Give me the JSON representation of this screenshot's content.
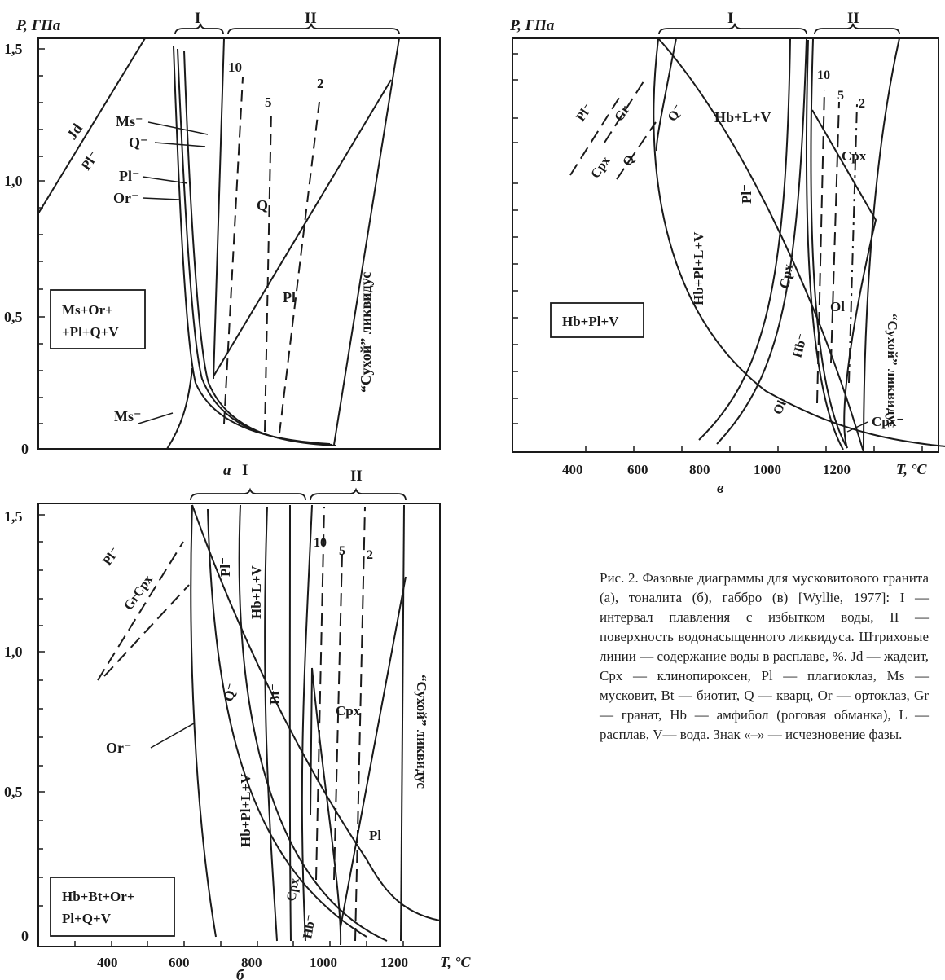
{
  "axis": {
    "p_label": "P, ГПа",
    "t_label": "T, °C",
    "p_ticks": [
      "1,5",
      "1,0",
      "0,5",
      "0"
    ],
    "t_ticks": [
      "400",
      "600",
      "800",
      "1000",
      "1200"
    ]
  },
  "brackets": {
    "one": "I",
    "two": "II"
  },
  "dry_liquidus": "“Сухой” ликвидус",
  "panels": {
    "a": {
      "letter": "а",
      "box": [
        "Ms+Or+",
        "+Pl+Q+V"
      ],
      "labels": {
        "jd": "Jd",
        "pl_left": "Pl⁻",
        "ms": "Ms⁻",
        "q": "Q⁻",
        "pl": "Pl⁻",
        "or": "Or⁻",
        "ms_low": "Ms⁻",
        "w10": "10",
        "w5": "5",
        "w2": "2",
        "q_field": "Q",
        "pl_field": "Pl"
      }
    },
    "v": {
      "letter": "в",
      "box": [
        "Hb+Pl+V"
      ],
      "labels": {
        "pl": "Pl⁻",
        "gr": "Gr",
        "cpx": "Cpx",
        "q": "Q",
        "q_top": "Q⁻",
        "hblv": "Hb+L+V",
        "hbpllv": "Hb+Pl+L+V",
        "pl_mid": "Pl⁻",
        "cpx_mid": "Cpx",
        "hb": "Hb⁻",
        "ol": "Ol",
        "ol2": "Ol",
        "cpx_r": "Cpx",
        "cpx_low": "Cpx⁻",
        "w10": "10",
        "w5": "5",
        "w2": "2"
      }
    },
    "b": {
      "letter": "б",
      "box": [
        "Hb+Bt+Or+",
        "Pl+Q+V"
      ],
      "labels": {
        "pl": "Pl⁻",
        "grcpx": "GrCpx",
        "pl_top": "Pl⁻",
        "hblv": "Hb+L+V",
        "q": "Q⁻",
        "bt": "Bt⁻",
        "or": "Or⁻",
        "hbpllv": "Hb+Pl+L+V",
        "cpx": "Cpx",
        "hb": "Hb⁻",
        "cpx_r": "Cpx",
        "pl_r": "Pl",
        "w10": "10",
        "w5": "5",
        "w2": "2"
      }
    }
  },
  "caption": "Рис. 2. Фазовые диаграммы для мусковитового гранита (а), тоналита (б), габбро (в) [Wyllie, 1977]: I — интервал плавления с избытком воды, II — поверхность водонасыщенного ликвидуса. Штриховые линии — содержание воды в расплаве, %. Jd — жадеит, Cpx — клинопироксен, Pl — плагиоклаз, Ms — мусковит, Bt — биотит, Q — кварц, Or — ортоклаз, Gr — гранат, Hb — амфибол (роговая обманка), L — расплав, V— вода. Знак «–» — исчезновение фазы."
}
